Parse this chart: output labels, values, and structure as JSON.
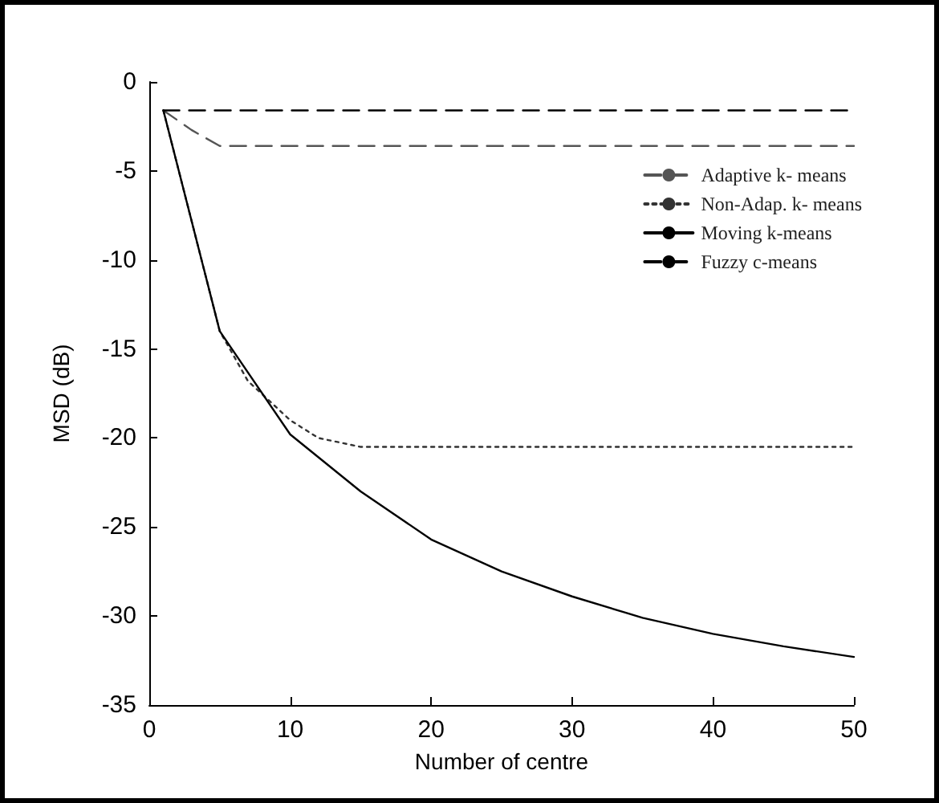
{
  "chart_data": {
    "type": "line",
    "xlabel": "Number of centre",
    "ylabel": "MSD (dB)",
    "xlim": [
      0,
      50
    ],
    "xticks": [
      0,
      10,
      20,
      30,
      40,
      50
    ],
    "ylim": [
      -35,
      0
    ],
    "yticks": [
      -35,
      -30,
      -25,
      -20,
      -15,
      -10,
      -5,
      0
    ],
    "grid": false,
    "legend": "top right",
    "marker": "none",
    "series": [
      {
        "name": "Adaptive k- means",
        "color": "#555555",
        "line_style": "dashed",
        "x": [
          1,
          3,
          5,
          50
        ],
        "values": [
          -1.6,
          -2.7,
          -3.6,
          -3.6
        ]
      },
      {
        "name": "Non-Adap. k- means",
        "color": "#333333",
        "line_style": "dotted",
        "x": [
          1,
          5,
          7,
          10,
          12,
          15,
          50
        ],
        "values": [
          -1.6,
          -14,
          -16.8,
          -19,
          -20,
          -20.5,
          -20.5
        ]
      },
      {
        "name": "Moving k-means",
        "color": "#000000",
        "line_style": "solid",
        "x": [
          1,
          5,
          10,
          15,
          20,
          25,
          30,
          35,
          40,
          45,
          50
        ],
        "values": [
          -1.6,
          -14,
          -19.8,
          -23,
          -25.7,
          -27.5,
          -28.9,
          -30.1,
          -31,
          -31.7,
          -32.3
        ]
      },
      {
        "name": "Fuzzy c-means",
        "color": "#000000",
        "line_style": "dashed",
        "x": [
          1,
          50
        ],
        "values": [
          -1.6,
          -1.6
        ]
      }
    ]
  }
}
